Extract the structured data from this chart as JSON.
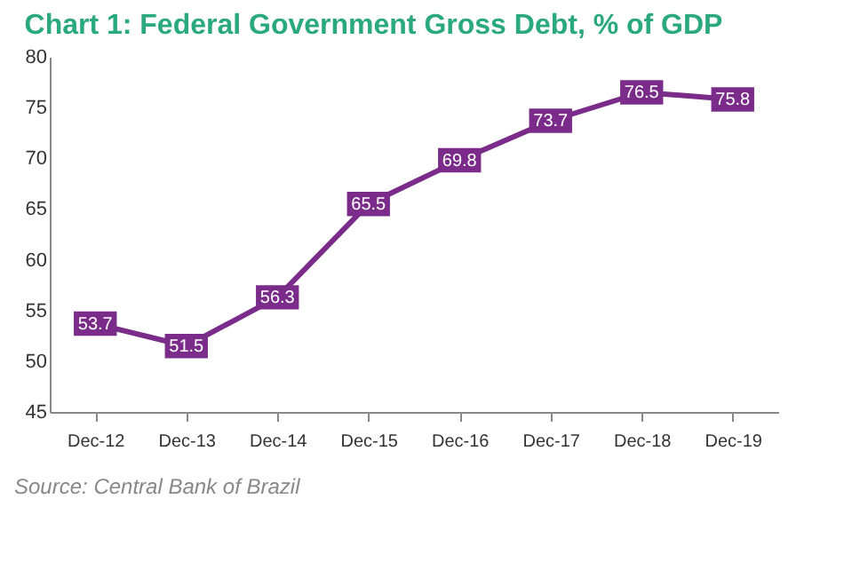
{
  "chart_data": {
    "type": "line",
    "title": "Chart 1: Federal Government Gross Debt, % of GDP",
    "categories": [
      "Dec-12",
      "Dec-13",
      "Dec-14",
      "Dec-15",
      "Dec-16",
      "Dec-17",
      "Dec-18",
      "Dec-19"
    ],
    "series": [
      {
        "color": "#7b2c8a",
        "values": [
          53.7,
          51.5,
          56.3,
          65.5,
          69.8,
          73.7,
          76.5,
          75.8
        ]
      }
    ],
    "ylim": [
      45,
      80
    ],
    "yticks": [
      45,
      50,
      55,
      60,
      65,
      70,
      75,
      80
    ],
    "grid": false,
    "legend": false,
    "marker": "square",
    "line_style": "solid",
    "data_labels": true,
    "annotations": [
      "Source: Central Bank of Brazil"
    ]
  }
}
